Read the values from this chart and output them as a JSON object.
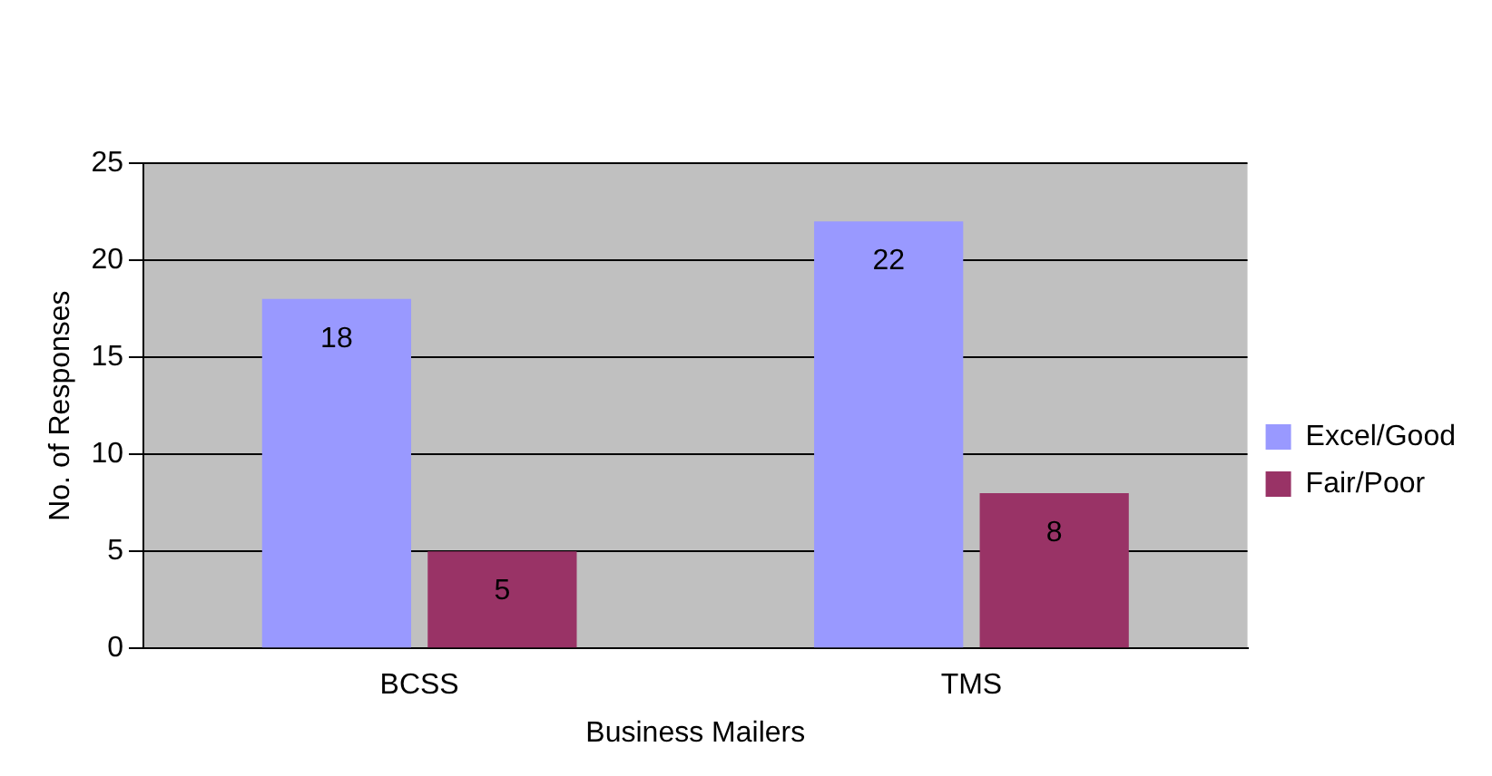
{
  "chart_data": {
    "type": "bar",
    "xlabel": "Business Mailers",
    "ylabel": "No. of Responses",
    "categories": [
      "BCSS",
      "TMS"
    ],
    "series": [
      {
        "name": "Excel/Good",
        "color": "#9999ff",
        "values": [
          18,
          22
        ]
      },
      {
        "name": "Fair/Poor",
        "color": "#993366",
        "values": [
          5,
          8
        ]
      }
    ],
    "ylim": [
      0,
      25
    ],
    "yticks": [
      0,
      5,
      10,
      15,
      20,
      25
    ],
    "grid": "y",
    "legend": "right",
    "data_labels": true
  }
}
